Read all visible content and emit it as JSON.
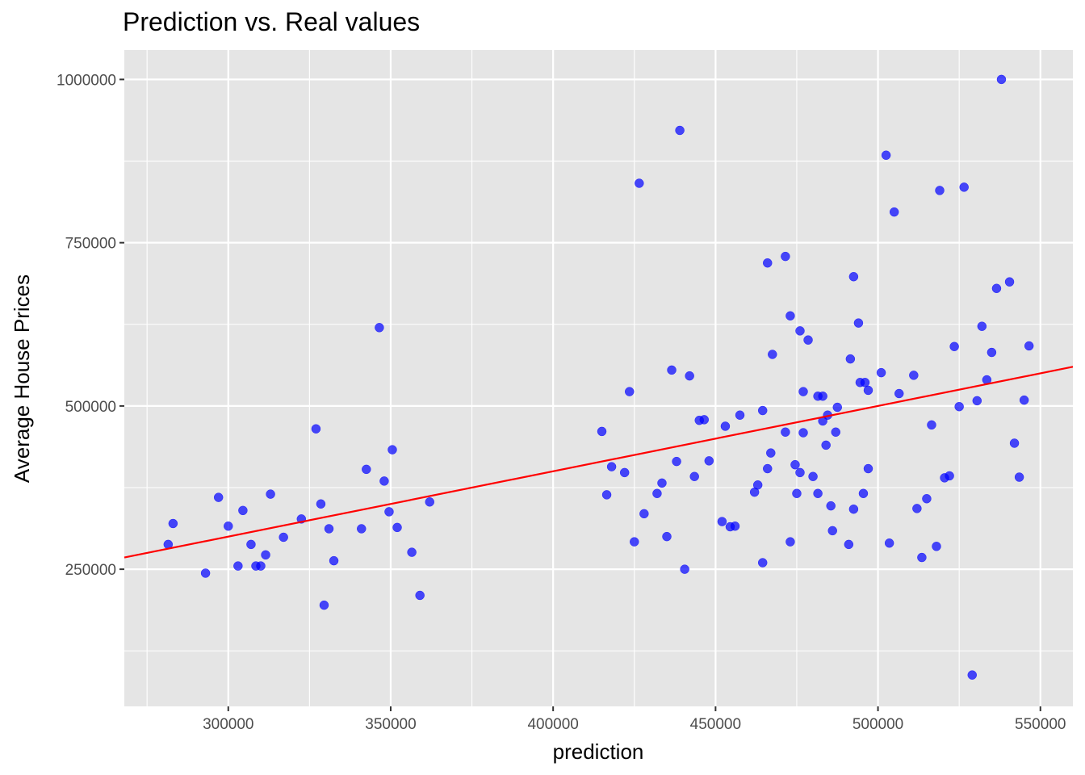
{
  "chart_data": {
    "type": "scatter",
    "title": "Prediction vs. Real values",
    "xlabel": "prediction",
    "ylabel": "Average House Prices",
    "xlim": [
      268000,
      560000
    ],
    "ylim": [
      40000,
      1045000
    ],
    "x_major_ticks": [
      300000,
      350000,
      400000,
      450000,
      500000,
      550000
    ],
    "x_minor_ticks": [
      275000,
      325000,
      375000,
      425000,
      475000,
      525000
    ],
    "y_major_ticks": [
      250000,
      500000,
      750000,
      1000000
    ],
    "y_minor_ticks": [
      125000,
      375000,
      625000,
      875000
    ],
    "x_tick_labels": [
      "300000",
      "350000",
      "400000",
      "450000",
      "500000",
      "550000"
    ],
    "y_tick_labels": [
      "250000",
      "500000",
      "750000",
      "1000000"
    ],
    "grid": true,
    "panel_color": "#e5e5e5",
    "grid_color": "#ffffff",
    "point_color": "#0000ff",
    "line_color": "#ff0000",
    "regression_line": {
      "x": [
        268000,
        560000
      ],
      "y": [
        268000,
        560000
      ]
    },
    "points": [
      [
        281500,
        288000
      ],
      [
        283000,
        320000
      ],
      [
        293000,
        244000
      ],
      [
        297000,
        360000
      ],
      [
        300000,
        316000
      ],
      [
        303000,
        255000
      ],
      [
        304500,
        340000
      ],
      [
        307000,
        288000
      ],
      [
        308500,
        255000
      ],
      [
        310000,
        255000
      ],
      [
        311500,
        272000
      ],
      [
        313000,
        365000
      ],
      [
        317000,
        299000
      ],
      [
        322500,
        327000
      ],
      [
        327000,
        465000
      ],
      [
        328500,
        350000
      ],
      [
        329500,
        195000
      ],
      [
        331000,
        312000
      ],
      [
        332500,
        263000
      ],
      [
        341000,
        312000
      ],
      [
        342500,
        403000
      ],
      [
        346500,
        620000
      ],
      [
        348000,
        385000
      ],
      [
        349500,
        338000
      ],
      [
        350500,
        433000
      ],
      [
        352000,
        314000
      ],
      [
        356500,
        276000
      ],
      [
        359000,
        210000
      ],
      [
        362000,
        353000
      ],
      [
        415000,
        461000
      ],
      [
        416500,
        364000
      ],
      [
        418000,
        407000
      ],
      [
        422000,
        398000
      ],
      [
        423500,
        522000
      ],
      [
        425000,
        292000
      ],
      [
        426500,
        841000
      ],
      [
        428000,
        335000
      ],
      [
        432000,
        366000
      ],
      [
        433500,
        382000
      ],
      [
        435000,
        300000
      ],
      [
        436500,
        555000
      ],
      [
        438000,
        415000
      ],
      [
        439000,
        922000
      ],
      [
        440500,
        250000
      ],
      [
        442000,
        546000
      ],
      [
        443500,
        392000
      ],
      [
        445000,
        478000
      ],
      [
        446500,
        479000
      ],
      [
        448000,
        416000
      ],
      [
        452000,
        323000
      ],
      [
        453000,
        469000
      ],
      [
        454500,
        315000
      ],
      [
        456000,
        316000
      ],
      [
        457500,
        486000
      ],
      [
        462000,
        368000
      ],
      [
        463000,
        379000
      ],
      [
        464500,
        493000
      ],
      [
        464500,
        260000
      ],
      [
        466000,
        404000
      ],
      [
        466000,
        719000
      ],
      [
        467000,
        428000
      ],
      [
        467500,
        579000
      ],
      [
        471500,
        460000
      ],
      [
        471500,
        729000
      ],
      [
        473000,
        638000
      ],
      [
        473000,
        292000
      ],
      [
        474500,
        410000
      ],
      [
        475000,
        366000
      ],
      [
        476000,
        615000
      ],
      [
        476000,
        398000
      ],
      [
        477000,
        522000
      ],
      [
        477000,
        459000
      ],
      [
        478500,
        601000
      ],
      [
        480000,
        392000
      ],
      [
        481500,
        366000
      ],
      [
        481500,
        515000
      ],
      [
        483000,
        515000
      ],
      [
        483000,
        477000
      ],
      [
        484000,
        440000
      ],
      [
        484500,
        486000
      ],
      [
        485500,
        347000
      ],
      [
        486000,
        309000
      ],
      [
        487000,
        460000
      ],
      [
        487500,
        498000
      ],
      [
        491000,
        288000
      ],
      [
        491500,
        572000
      ],
      [
        492500,
        698000
      ],
      [
        492500,
        342000
      ],
      [
        494000,
        627000
      ],
      [
        494500,
        536000
      ],
      [
        495500,
        366000
      ],
      [
        496000,
        536000
      ],
      [
        497000,
        524000
      ],
      [
        497000,
        404000
      ],
      [
        501000,
        551000
      ],
      [
        502500,
        884000
      ],
      [
        503500,
        290000
      ],
      [
        505000,
        797000
      ],
      [
        506500,
        519000
      ],
      [
        511000,
        547000
      ],
      [
        512000,
        343000
      ],
      [
        513500,
        268000
      ],
      [
        515000,
        358000
      ],
      [
        516500,
        471000
      ],
      [
        518000,
        285000
      ],
      [
        519000,
        830000
      ],
      [
        520500,
        390000
      ],
      [
        522000,
        393000
      ],
      [
        523500,
        591000
      ],
      [
        525000,
        499000
      ],
      [
        526500,
        835000
      ],
      [
        529000,
        88000
      ],
      [
        530500,
        508000
      ],
      [
        532000,
        622000
      ],
      [
        533500,
        540000
      ],
      [
        535000,
        582000
      ],
      [
        536500,
        680000
      ],
      [
        538000,
        1000000
      ],
      [
        540500,
        690000
      ],
      [
        542000,
        443000
      ],
      [
        543500,
        391000
      ],
      [
        545000,
        509000
      ],
      [
        546500,
        592000
      ]
    ]
  }
}
